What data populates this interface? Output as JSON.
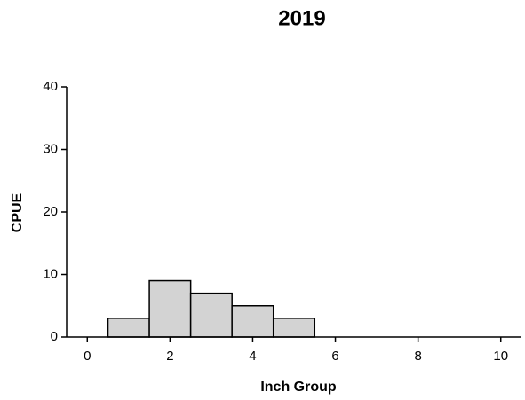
{
  "chart_data": {
    "type": "histogram",
    "title": "2019",
    "x_label": "Inch Group",
    "y_label": "CPUE",
    "bins": [
      0.5,
      1.5,
      2.5,
      3.5,
      4.5,
      5.5
    ],
    "values": [
      3,
      9,
      7,
      5,
      3
    ],
    "color": "#d3d3d3",
    "edge_color": "#000000",
    "xlim": [
      -0.5,
      10.5
    ],
    "xticks": [
      0,
      2,
      4,
      6,
      8,
      10
    ],
    "ylim": [
      0,
      40
    ],
    "yticks": [
      0,
      10,
      20,
      30,
      40
    ]
  }
}
